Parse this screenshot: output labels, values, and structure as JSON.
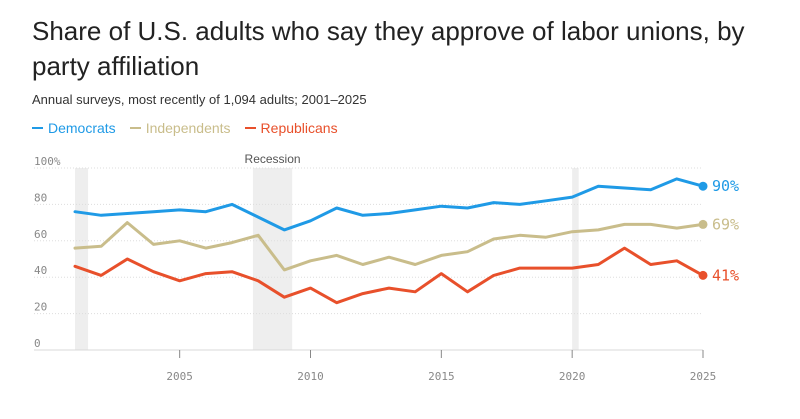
{
  "chart_data": {
    "type": "line",
    "title": "Share of U.S. adults who say they approve of labor unions, by party affiliation",
    "subtitle": "Annual surveys, most recently of 1,094 adults; 2001–2025",
    "xlabel": "",
    "ylabel": "",
    "xlim": [
      2001,
      2025
    ],
    "ylim": [
      0,
      100
    ],
    "x": [
      2001,
      2002,
      2003,
      2004,
      2005,
      2006,
      2007,
      2008,
      2009,
      2010,
      2011,
      2012,
      2013,
      2014,
      2015,
      2016,
      2017,
      2018,
      2019,
      2020,
      2021,
      2022,
      2023,
      2024,
      2025
    ],
    "x_ticks": [
      2005,
      2010,
      2015,
      2020,
      2025
    ],
    "y_ticks": [
      0,
      20,
      40,
      60,
      80,
      100
    ],
    "y_tick_labels": [
      "0",
      "20",
      "40",
      "60",
      "80",
      "100%"
    ],
    "shaded_periods": [
      {
        "start": 2001.0,
        "end": 2001.5,
        "label": ""
      },
      {
        "start": 2007.8,
        "end": 2009.3,
        "label": "Recession"
      },
      {
        "start": 2020.0,
        "end": 2020.25,
        "label": ""
      }
    ],
    "series": [
      {
        "name": "Democrats",
        "color": "#1f9ae6",
        "values": [
          76,
          74,
          75,
          76,
          77,
          76,
          80,
          73,
          66,
          71,
          78,
          74,
          75,
          77,
          79,
          78,
          81,
          80,
          82,
          84,
          90,
          89,
          88,
          94,
          90
        ],
        "end_label": "90%"
      },
      {
        "name": "Independents",
        "color": "#c9bd8b",
        "values": [
          56,
          57,
          70,
          58,
          60,
          56,
          59,
          63,
          44,
          49,
          52,
          47,
          51,
          47,
          52,
          54,
          61,
          63,
          62,
          65,
          66,
          69,
          69,
          67,
          69
        ],
        "end_label": "69%"
      },
      {
        "name": "Republicans",
        "color": "#e8502b",
        "values": [
          46,
          41,
          50,
          43,
          38,
          42,
          43,
          38,
          29,
          34,
          26,
          31,
          34,
          32,
          42,
          32,
          41,
          45,
          45,
          45,
          47,
          56,
          47,
          49,
          41
        ],
        "end_label": "41%"
      }
    ],
    "legend": "top-left"
  }
}
